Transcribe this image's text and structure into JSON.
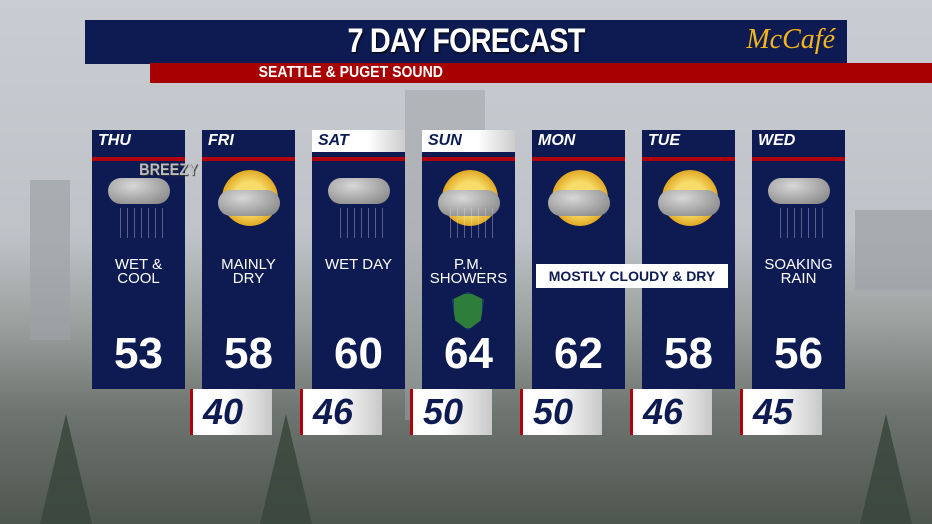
{
  "header": {
    "title": "7 DAY FORECAST",
    "subtitle": "SEATTLE & PUGET SOUND",
    "sponsor": "McCafé"
  },
  "days": [
    {
      "day": "THU",
      "desc": "WET & COOL",
      "tag": "BREEZY",
      "high": "53",
      "low": null,
      "icon": "rain-cloud-icon",
      "weekend": false
    },
    {
      "day": "FRI",
      "desc": "MAINLY DRY",
      "high": "58",
      "low": "40",
      "icon": "partly-sunny-icon",
      "weekend": false
    },
    {
      "day": "SAT",
      "desc": "WET DAY",
      "high": "60",
      "low": "46",
      "icon": "rain-cloud-icon",
      "weekend": true
    },
    {
      "day": "SUN",
      "desc": "P.M. SHOWERS",
      "high": "64",
      "low": "50",
      "icon": "partly-sunny-showers-icon",
      "weekend": true
    },
    {
      "day": "MON",
      "desc": "",
      "high": "62",
      "low": "50",
      "icon": "partly-sunny-icon",
      "weekend": false
    },
    {
      "day": "TUE",
      "desc": "",
      "high": "58",
      "low": "46",
      "icon": "partly-sunny-icon",
      "weekend": false
    },
    {
      "day": "WED",
      "desc": "SOAKING RAIN",
      "high": "56",
      "low": "45",
      "icon": "rain-cloud-icon",
      "weekend": false
    }
  ],
  "span_label": "MOSTLY CLOUDY & DRY",
  "colors": {
    "panel": "#0d1b52",
    "accent_red": "#b0000c",
    "sponsor": "#f5b61a"
  }
}
